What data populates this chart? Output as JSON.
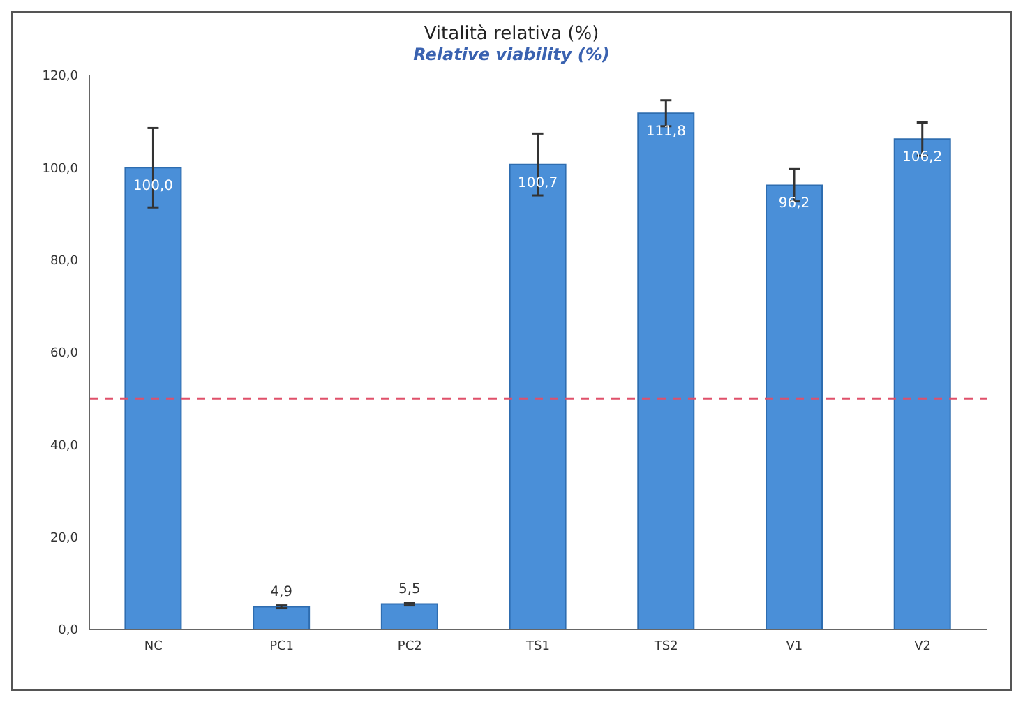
{
  "chart_data": {
    "type": "bar",
    "title": "Vitalità relativa (%)",
    "subtitle": "Relative viability (%)",
    "categories": [
      "NC",
      "PC1",
      "PC2",
      "TS1",
      "TS2",
      "V1",
      "V2"
    ],
    "values": [
      100.0,
      4.9,
      5.5,
      100.7,
      111.8,
      96.2,
      106.2
    ],
    "value_labels": [
      "100,0",
      "4,9",
      "5,5",
      "100,7",
      "111,8",
      "96,2",
      "106,2"
    ],
    "errors": [
      8.6,
      0.3,
      0.3,
      6.7,
      2.8,
      3.5,
      3.6
    ],
    "color": "#4a8fd8",
    "ylim": [
      0,
      120
    ],
    "yticks": [
      {
        "value": 0,
        "label": "0,0"
      },
      {
        "value": 20,
        "label": "20,0"
      },
      {
        "value": 40,
        "label": "40,0"
      },
      {
        "value": 60,
        "label": "60,0"
      },
      {
        "value": 80,
        "label": "80,0"
      },
      {
        "value": 100,
        "label": "100,0"
      },
      {
        "value": 120,
        "label": "120,0"
      }
    ],
    "ref_lines": [
      {
        "axis": "y",
        "value": 50,
        "color": "#e0506a",
        "line_style": "dashed"
      }
    ],
    "grid": false,
    "legend": false
  }
}
